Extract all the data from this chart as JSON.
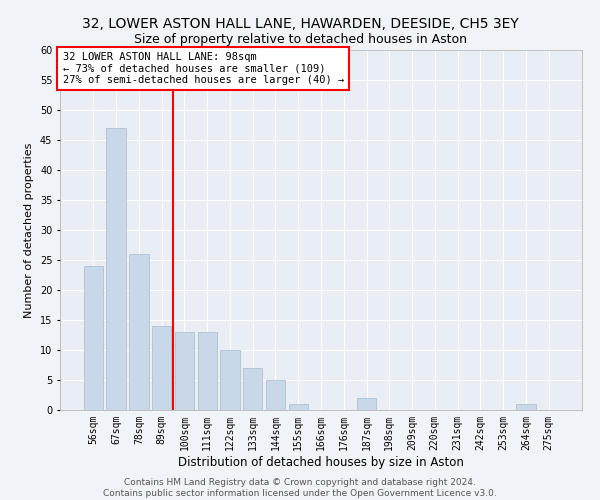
{
  "title1": "32, LOWER ASTON HALL LANE, HAWARDEN, DEESIDE, CH5 3EY",
  "title2": "Size of property relative to detached houses in Aston",
  "xlabel": "Distribution of detached houses by size in Aston",
  "ylabel": "Number of detached properties",
  "categories": [
    "56sqm",
    "67sqm",
    "78sqm",
    "89sqm",
    "100sqm",
    "111sqm",
    "122sqm",
    "133sqm",
    "144sqm",
    "155sqm",
    "166sqm",
    "176sqm",
    "187sqm",
    "198sqm",
    "209sqm",
    "220sqm",
    "231sqm",
    "242sqm",
    "253sqm",
    "264sqm",
    "275sqm"
  ],
  "values": [
    24,
    47,
    26,
    14,
    13,
    13,
    10,
    7,
    5,
    1,
    0,
    0,
    2,
    0,
    0,
    0,
    0,
    0,
    0,
    1,
    0
  ],
  "bar_color": "#c8d8e8",
  "bar_edge_color": "#aabbcc",
  "vline_color": "red",
  "vline_index": 3.5,
  "annotation_text": "32 LOWER ASTON HALL LANE: 98sqm\n← 73% of detached houses are smaller (109)\n27% of semi-detached houses are larger (40) →",
  "annotation_box_color": "white",
  "annotation_box_edge": "red",
  "ylim": [
    0,
    60
  ],
  "yticks": [
    0,
    5,
    10,
    15,
    20,
    25,
    30,
    35,
    40,
    45,
    50,
    55,
    60
  ],
  "footnote": "Contains HM Land Registry data © Crown copyright and database right 2024.\nContains public sector information licensed under the Open Government Licence v3.0.",
  "bg_color": "#f0f4f8",
  "plot_bg_color": "#e8eef4",
  "grid_color": "white",
  "title1_fontsize": 10,
  "title2_fontsize": 9,
  "xlabel_fontsize": 8.5,
  "ylabel_fontsize": 8,
  "tick_fontsize": 7,
  "footnote_fontsize": 6.5,
  "annotation_fontsize": 7.5
}
